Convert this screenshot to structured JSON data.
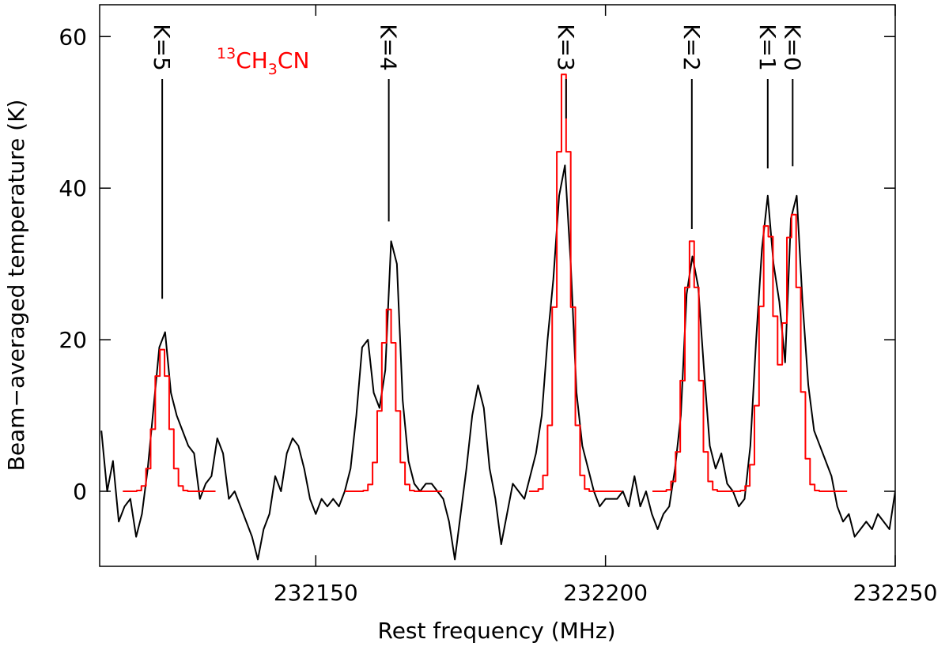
{
  "chart_data": {
    "type": "line",
    "x_label": "Rest frequency (MHz)",
    "y_label": "Beam−averaged temperature (K)",
    "xlim": [
      232112.7,
      232250
    ],
    "ylim": [
      -9.9,
      64.2
    ],
    "xticks": [
      232150,
      232200,
      232250
    ],
    "yticks": [
      0,
      20,
      40,
      60
    ],
    "species_label": [
      "13",
      "CH",
      "3",
      "CN"
    ],
    "species_color": "#ff0000",
    "annotations": [
      {
        "label": "K=5",
        "x": 232123.5,
        "y": 25.4
      },
      {
        "label": "K=4",
        "x": 232162.6,
        "y": 35.6
      },
      {
        "label": "K=3",
        "x": 232193.2,
        "y": 49.2
      },
      {
        "label": "K=2",
        "x": 232214.9,
        "y": 34.6
      },
      {
        "label": "K=1",
        "x": 232228.0,
        "y": 42.6
      },
      {
        "label": "K=0",
        "x": 232232.3,
        "y": 42.9
      }
    ],
    "series": [
      {
        "color": "#000000",
        "step": false,
        "x": [
          232113,
          232114,
          232115,
          232116,
          232117,
          232118,
          232119,
          232120,
          232121,
          232122,
          232123,
          232124,
          232125,
          232126,
          232127,
          232128,
          232129,
          232130,
          232131,
          232132,
          232133,
          232134,
          232135,
          232136,
          232137,
          232138,
          232139,
          232140,
          232141,
          232142,
          232143,
          232144,
          232145,
          232146,
          232147,
          232148,
          232149,
          232150,
          232151,
          232152,
          232153,
          232154,
          232155,
          232156,
          232157,
          232158,
          232159,
          232160,
          232161,
          232162,
          232163,
          232164,
          232165,
          232166,
          232167,
          232168,
          232169,
          232170,
          232171,
          232172,
          232173,
          232174,
          232175,
          232176,
          232177,
          232178,
          232179,
          232180,
          232181,
          232182,
          232183,
          232184,
          232185,
          232186,
          232187,
          232188,
          232189,
          232190,
          232191,
          232192,
          232193,
          232194,
          232195,
          232196,
          232197,
          232198,
          232199,
          232200,
          232201,
          232202,
          232203,
          232204,
          232205,
          232206,
          232207,
          232208,
          232209,
          232210,
          232211,
          232212,
          232213,
          232214,
          232215,
          232216,
          232217,
          232218,
          232219,
          232220,
          232221,
          232222,
          232223,
          232224,
          232225,
          232226,
          232227,
          232228,
          232229,
          232230,
          232231,
          232232,
          232233,
          232234,
          232235,
          232236,
          232237,
          232238,
          232239,
          232240,
          232241,
          232242,
          232243,
          232244,
          232245,
          232246,
          232247,
          232248,
          232249,
          232250
        ],
        "values": [
          8,
          0,
          4,
          -4,
          -2,
          -1,
          -6,
          -3,
          3,
          11,
          19,
          21,
          13,
          10,
          8,
          6,
          5,
          -1,
          1,
          2,
          7,
          5,
          -1,
          0,
          -2,
          -4,
          -6,
          -9,
          -5,
          -3,
          2,
          0,
          5,
          7,
          6,
          3,
          -1,
          -3,
          -1,
          -2,
          -1,
          -2,
          0,
          3,
          10,
          19,
          20,
          13,
          11,
          16,
          33,
          30,
          12,
          4,
          1,
          0,
          1,
          1,
          0,
          -1,
          -4,
          -9,
          -3,
          3,
          10,
          14,
          11,
          3,
          -1,
          -7,
          -3,
          1,
          0,
          -1,
          2,
          5,
          10,
          20,
          28,
          39,
          43,
          30,
          13,
          6,
          3,
          0,
          -2,
          -1,
          -1,
          -1,
          0,
          -2,
          2,
          -2,
          0,
          -3,
          -5,
          -3,
          -2,
          3,
          10,
          26,
          31,
          27,
          16,
          6,
          3,
          5,
          1,
          0,
          -2,
          -1,
          6,
          20,
          32,
          39,
          30,
          25,
          17,
          36,
          39,
          25,
          14,
          8,
          6,
          4,
          2,
          -2,
          -4,
          -3,
          -6,
          -5,
          -4,
          -5,
          -3,
          -4,
          -5,
          0
        ]
      },
      {
        "color": "#ff0000",
        "step": true,
        "x": [
          232117.1,
          232117.9,
          232118.7,
          232119.5,
          232120.3,
          232121.1,
          232121.9,
          232122.7,
          232123.5,
          232124.3,
          232125.1,
          232125.9,
          232126.7,
          232127.5,
          232128.3,
          232129.1,
          232129.9,
          232130.7,
          232131.5,
          232132.3,
          232144,
          232155.4,
          232156.2,
          232157.0,
          232157.8,
          232158.6,
          232159.4,
          232160.2,
          232161.0,
          232161.8,
          232162.6,
          232163.4,
          232164.2,
          232165.0,
          232165.8,
          232166.6,
          232167.4,
          232168.2,
          232169.0,
          232169.8,
          232170.6,
          232171.4,
          232180,
          232187.2,
          232188.0,
          232188.8,
          232189.6,
          232190.4,
          232191.2,
          232192.0,
          232192.8,
          232193.6,
          232194.4,
          232195.2,
          232196.0,
          232196.8,
          232197.6,
          232198.4,
          232199.2,
          232200.0,
          232200.8,
          232201.6,
          232202.4,
          232205,
          232208.5,
          232209.3,
          232210.1,
          232210.9,
          232211.7,
          232212.5,
          232213.3,
          232214.1,
          232214.9,
          232215.7,
          232216.5,
          232217.3,
          232218.1,
          232218.9,
          232219.7,
          232220.5,
          232221.3,
          232222.1,
          232222.9,
          232223.7,
          232224.5,
          232225.3,
          232226.1,
          232226.9,
          232227.7,
          232228.5,
          232229.3,
          232230.1,
          232230.9,
          232231.7,
          232232.5,
          232233.3,
          232234.1,
          232234.9,
          232235.7,
          232236.5,
          232237.3,
          232238.1,
          232238.9,
          232239.7,
          232240.5,
          232241.3
        ],
        "values": [
          0,
          0,
          0,
          0.1,
          0.7,
          3.0,
          8.2,
          15.2,
          18.7,
          15.2,
          8.2,
          3.0,
          0.7,
          0.1,
          0,
          0,
          0,
          0,
          0,
          0,
          null,
          0,
          0,
          0,
          0,
          0.1,
          0.9,
          3.8,
          10.6,
          19.6,
          24,
          19.6,
          10.6,
          3.8,
          0.9,
          0.1,
          0,
          0,
          0,
          0,
          0,
          0,
          null,
          0,
          0,
          0.3,
          2.1,
          8.7,
          24.3,
          44.8,
          55,
          44.8,
          24.3,
          8.7,
          2.1,
          0.3,
          0,
          0,
          0,
          0,
          0,
          0,
          0,
          null,
          0,
          0,
          0,
          0.2,
          1.3,
          5.2,
          14.6,
          26.9,
          33,
          26.9,
          14.6,
          5.2,
          1.3,
          0.2,
          0,
          0,
          0,
          0,
          0,
          0.1,
          0.7,
          3.5,
          11.3,
          24.4,
          35.0,
          33.6,
          23.1,
          16.7,
          22.2,
          33.5,
          36.5,
          26.9,
          13.1,
          4.3,
          0.9,
          0.1,
          0,
          0,
          0,
          0,
          0,
          0
        ]
      }
    ]
  }
}
